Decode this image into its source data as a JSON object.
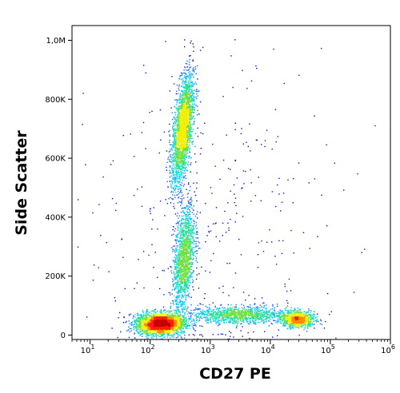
{
  "chart_data": {
    "type": "scatter",
    "subtype": "flow-cytometry density dot plot",
    "xlabel": "CD27 PE",
    "ylabel": "Side Scatter",
    "x_scale": "log",
    "xlim": [
      5,
      1000000
    ],
    "ylim": [
      -15000,
      1050000
    ],
    "x_ticks": [
      {
        "value": 10,
        "base": "10",
        "exp": "1"
      },
      {
        "value": 100,
        "base": "10",
        "exp": "2"
      },
      {
        "value": 1000,
        "base": "10",
        "exp": "3"
      },
      {
        "value": 10000,
        "base": "10",
        "exp": "4"
      },
      {
        "value": 100000,
        "base": "10",
        "exp": "5"
      },
      {
        "value": 1000000,
        "base": "10",
        "exp": "6"
      }
    ],
    "y_ticks": [
      {
        "value": 0,
        "label": "0"
      },
      {
        "value": 200000,
        "label": "200K"
      },
      {
        "value": 400000,
        "label": "400K"
      },
      {
        "value": 600000,
        "label": "600K"
      },
      {
        "value": 800000,
        "label": "800K"
      },
      {
        "value": 1000000,
        "label": "1,0M"
      }
    ],
    "density_colors": [
      "#1010c8",
      "#1e64ff",
      "#00c8ff",
      "#20e0a0",
      "#70e040",
      "#f0f000",
      "#ff8c00",
      "#ff1e00",
      "#c80000"
    ],
    "populations": [
      {
        "cells": 2600,
        "center": [
          145,
          40000
        ],
        "spread": [
          0.2,
          18000
        ],
        "correlation": 0
      },
      {
        "cells": 2300,
        "center": [
          340,
          700000
        ],
        "spread": [
          0.09,
          95000
        ],
        "correlation": 0.55
      },
      {
        "cells": 1500,
        "center": [
          360,
          260000
        ],
        "spread": [
          0.09,
          90000
        ],
        "correlation": 0.4
      },
      {
        "cells": 1100,
        "center": [
          3000,
          70000
        ],
        "spread": [
          0.4,
          14000
        ],
        "correlation": 0
      },
      {
        "cells": 900,
        "center": [
          28000,
          55000
        ],
        "spread": [
          0.14,
          13000
        ],
        "correlation": 0
      },
      {
        "cells": 350,
        "center": [
          900,
          350000
        ],
        "spread": [
          1.0,
          280000
        ],
        "correlation": 0
      }
    ]
  }
}
